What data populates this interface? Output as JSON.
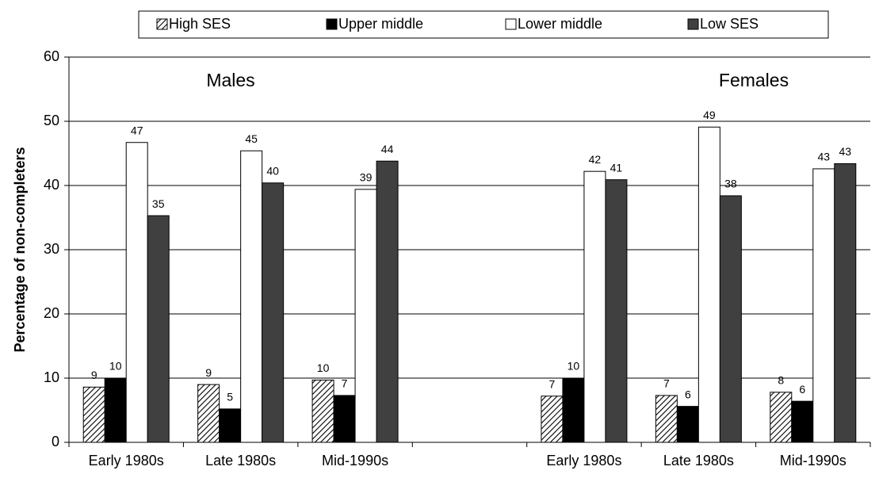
{
  "chart_data": {
    "type": "bar",
    "ylabel": "Percentage of non-completers",
    "annotations": [
      "Males",
      "Females"
    ],
    "categories": [
      "Early 1980s",
      "Late 1980s",
      "Mid-1990s",
      null,
      "Early 1980s",
      "Late 1980s",
      "Mid-1990s"
    ],
    "series": [
      {
        "name": "High SES",
        "color": "#ffffff",
        "pattern": "hatch",
        "values": [
          8.6,
          9.0,
          9.7,
          null,
          7.2,
          7.3,
          7.8
        ],
        "value_labels": [
          "9",
          "9",
          "10",
          null,
          "7",
          "7",
          "8"
        ]
      },
      {
        "name": "Upper middle",
        "color": "#000000",
        "values": [
          10.0,
          5.2,
          7.3,
          null,
          10.0,
          5.6,
          6.4
        ],
        "value_labels": [
          "10",
          "5",
          "7",
          null,
          "10",
          "6",
          "6"
        ]
      },
      {
        "name": "Lower middle",
        "color": "#ffffff",
        "values": [
          46.7,
          45.4,
          39.4,
          null,
          42.2,
          49.1,
          42.6
        ],
        "value_labels": [
          "47",
          "45",
          "39",
          null,
          "42",
          "49",
          "43"
        ]
      },
      {
        "name": "Low SES",
        "color": "#404040",
        "values": [
          35.3,
          40.4,
          43.8,
          null,
          40.9,
          38.4,
          43.4
        ],
        "value_labels": [
          "35",
          "40",
          "44",
          null,
          "41",
          "38",
          "43"
        ]
      }
    ],
    "ylim": [
      0,
      60
    ],
    "yticks": [
      0,
      10,
      20,
      30,
      40,
      50,
      60
    ],
    "grid": true,
    "legend": "top"
  }
}
